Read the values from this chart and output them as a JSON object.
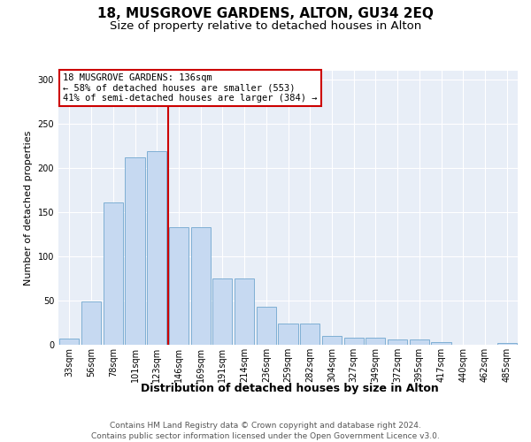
{
  "title": "18, MUSGROVE GARDENS, ALTON, GU34 2EQ",
  "subtitle": "Size of property relative to detached houses in Alton",
  "xlabel": "Distribution of detached houses by size in Alton",
  "ylabel": "Number of detached properties",
  "categories": [
    "33sqm",
    "56sqm",
    "78sqm",
    "101sqm",
    "123sqm",
    "146sqm",
    "169sqm",
    "191sqm",
    "214sqm",
    "236sqm",
    "259sqm",
    "282sqm",
    "304sqm",
    "327sqm",
    "349sqm",
    "372sqm",
    "395sqm",
    "417sqm",
    "440sqm",
    "462sqm",
    "485sqm"
  ],
  "values": [
    7,
    49,
    161,
    212,
    219,
    133,
    133,
    75,
    75,
    43,
    24,
    24,
    10,
    8,
    8,
    6,
    6,
    3,
    0,
    0,
    2
  ],
  "bar_color": "#c6d9f1",
  "bar_edge_color": "#7fafd4",
  "vline_pos": 4.5,
  "vline_color": "#cc0000",
  "annotation_text": "18 MUSGROVE GARDENS: 136sqm\n← 58% of detached houses are smaller (553)\n41% of semi-detached houses are larger (384) →",
  "annotation_box_color": "#ffffff",
  "annotation_box_edge": "#cc0000",
  "footer_text": "Contains HM Land Registry data © Crown copyright and database right 2024.\nContains public sector information licensed under the Open Government Licence v3.0.",
  "ylim": [
    0,
    310
  ],
  "plot_bg_color": "#e8eef7",
  "grid_color": "#ffffff",
  "title_fontsize": 11,
  "subtitle_fontsize": 9.5,
  "xlabel_fontsize": 9,
  "ylabel_fontsize": 8,
  "tick_fontsize": 7,
  "annotation_fontsize": 7.5,
  "footer_fontsize": 6.5,
  "yticks": [
    0,
    50,
    100,
    150,
    200,
    250,
    300
  ]
}
